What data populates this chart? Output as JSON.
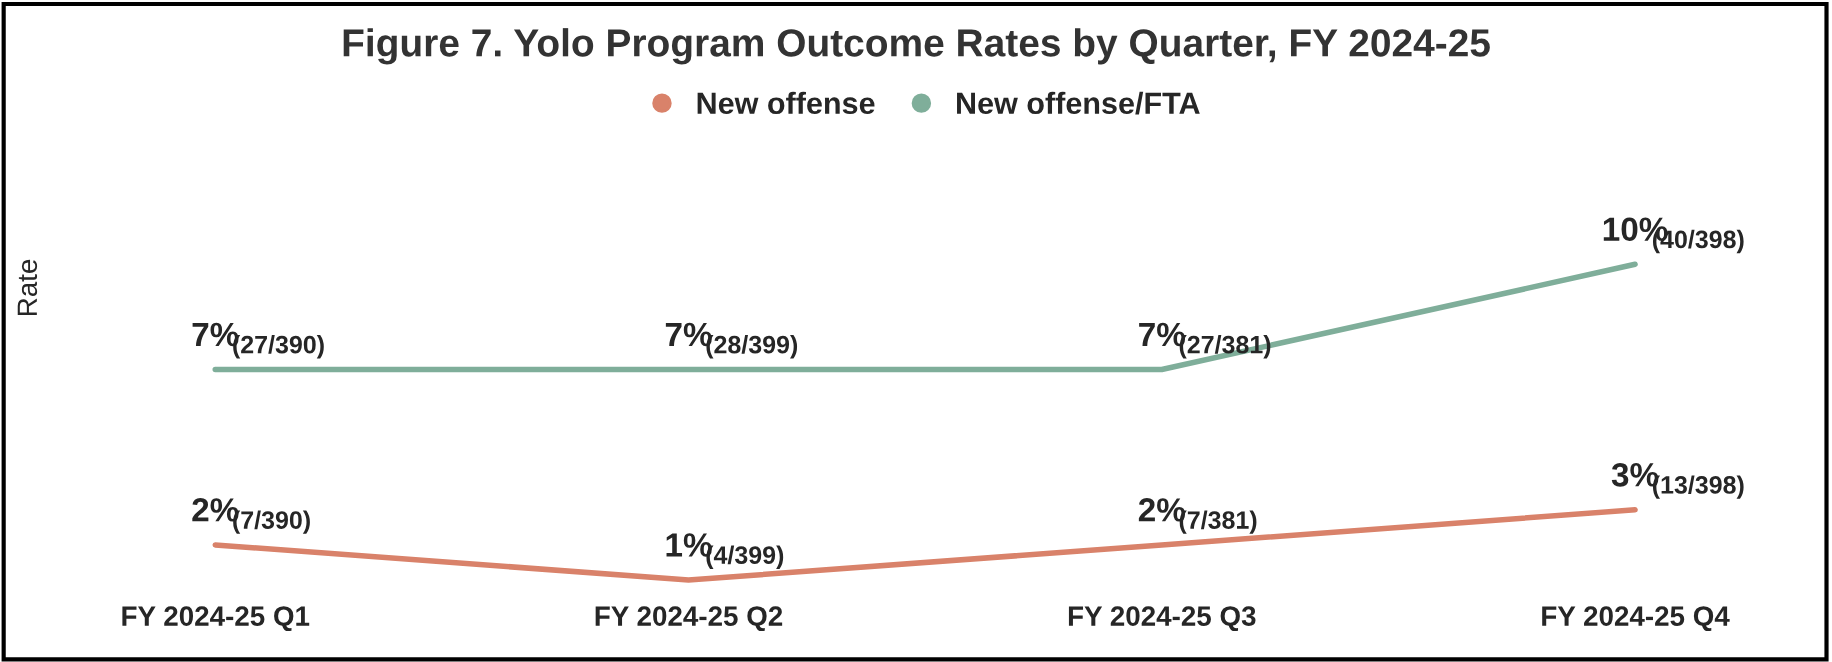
{
  "chart_data": {
    "type": "line",
    "title": "Figure 7. Yolo Program Outcome Rates by Quarter, FY 2024-25",
    "ylabel": "Rate",
    "categories": [
      "FY 2024-25 Q1",
      "FY 2024-25 Q2",
      "FY 2024-25 Q3",
      "FY 2024-25 Q4"
    ],
    "series": [
      {
        "name": "New offense",
        "color": "#d9826a",
        "values": [
          2,
          1,
          2,
          3
        ],
        "value_labels": [
          "2%",
          "1%",
          "2%",
          "3%"
        ]
      },
      {
        "name": "New offense/FTA",
        "color": "#7fae9a",
        "values": [
          7,
          7,
          7,
          10
        ],
        "value_labels": [
          "7%",
          "7%",
          "7%",
          "10%"
        ]
      }
    ],
    "annotations": [
      {
        "text": "(7/390)",
        "x": "FY 2024-25 Q1",
        "y": 2
      },
      {
        "text": "(4/399)",
        "x": "FY 2024-25 Q2",
        "y": 1
      },
      {
        "text": "(7/381)",
        "x": "FY 2024-25 Q3",
        "y": 2
      },
      {
        "text": "(13/398)",
        "x": "FY 2024-25 Q4",
        "y": 3
      },
      {
        "text": "(27/390)",
        "x": "FY 2024-25 Q1",
        "y": 7
      },
      {
        "text": "(28/399)",
        "x": "FY 2024-25 Q2",
        "y": 7
      },
      {
        "text": "(27/381)",
        "x": "FY 2024-25 Q3",
        "y": 7
      },
      {
        "text": "(40/398)",
        "x": "FY 2024-25 Q4",
        "y": 10
      }
    ],
    "legend": "top",
    "grid": false,
    "marker": "none",
    "line_style": "solid",
    "tick_labels": "x"
  }
}
